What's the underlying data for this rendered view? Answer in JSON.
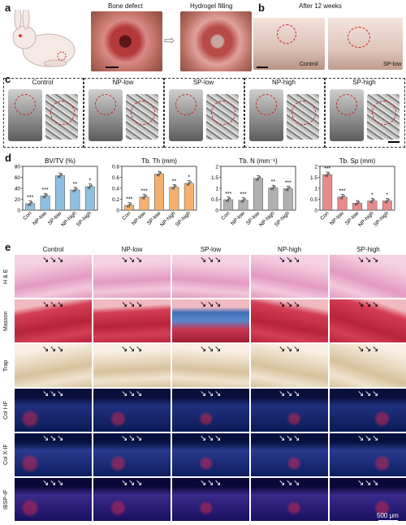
{
  "panels": {
    "a": "a",
    "b": "b",
    "c": "c",
    "d": "d",
    "e": "e"
  },
  "panel_a": {
    "label_defect": "Bone defect",
    "label_filling": "Hydrogel filling"
  },
  "panel_b": {
    "title": "After 12 weeks",
    "label_control": "Control",
    "label_sp": "SP-low"
  },
  "panel_c": {
    "groups": [
      "Control",
      "NP-low",
      "SP-low",
      "NP-high",
      "SP-high"
    ]
  },
  "panel_e": {
    "columns": [
      "Control",
      "NP-low",
      "SP-low",
      "NP-high",
      "SP-high"
    ],
    "rows": [
      "H & E",
      "Masson",
      "Trap",
      "Col I-IF",
      "Col X-IF",
      "IBSP-IF"
    ],
    "scale_label": "500 μm"
  },
  "colors": {
    "c_con": "#6aaed6",
    "c_tbth": "#f4a460",
    "c_tbn": "#a9a9a9",
    "c_tbsp": "#e07b7b"
  },
  "chart_data": [
    {
      "type": "bar",
      "title": "BV/TV (%)",
      "categories": [
        "Con",
        "NP-low",
        "SP-low",
        "NP-high",
        "SP-high"
      ],
      "values": [
        12,
        26,
        63,
        37,
        43
      ],
      "ylim": [
        0,
        80
      ],
      "yticks": [
        0,
        20,
        40,
        60,
        80
      ],
      "sig": [
        "***",
        "***",
        "",
        "**",
        "*"
      ],
      "color": "#8fbfe0"
    },
    {
      "type": "bar",
      "title": "Tb. Th (mm)",
      "categories": [
        "Con",
        "NP-low",
        "SP-low",
        "NP-high",
        "SP-high"
      ],
      "values": [
        0.09,
        0.24,
        0.66,
        0.42,
        0.49
      ],
      "ylim": [
        0,
        0.8
      ],
      "yticks": [
        0.0,
        0.2,
        0.4,
        0.6,
        0.8
      ],
      "sig": [
        "***",
        "***",
        "",
        "**",
        "*"
      ],
      "color": "#f5b070"
    },
    {
      "type": "bar",
      "title": "Tb. N (mm⁻¹)",
      "categories": [
        "Con",
        "NP-low",
        "SP-low",
        "NP-high",
        "SP-high"
      ],
      "values": [
        0.48,
        0.45,
        1.45,
        1.02,
        0.98
      ],
      "ylim": [
        0,
        2.0
      ],
      "yticks": [
        0.0,
        0.5,
        1.0,
        1.5,
        2.0
      ],
      "sig": [
        "***",
        "***",
        "",
        "**",
        "***"
      ],
      "color": "#b0b0b0"
    },
    {
      "type": "bar",
      "title": "Tb. Sp (mm)",
      "categories": [
        "Con",
        "NP-low",
        "SP-low",
        "NP-high",
        "SP-high"
      ],
      "values": [
        1.62,
        0.6,
        0.32,
        0.42,
        0.42
      ],
      "ylim": [
        0,
        2.0
      ],
      "yticks": [
        0.0,
        0.5,
        1.0,
        1.5,
        2.0
      ],
      "sig": [
        "***",
        "***",
        "",
        "*",
        "*"
      ],
      "color": "#e88a8a"
    }
  ]
}
